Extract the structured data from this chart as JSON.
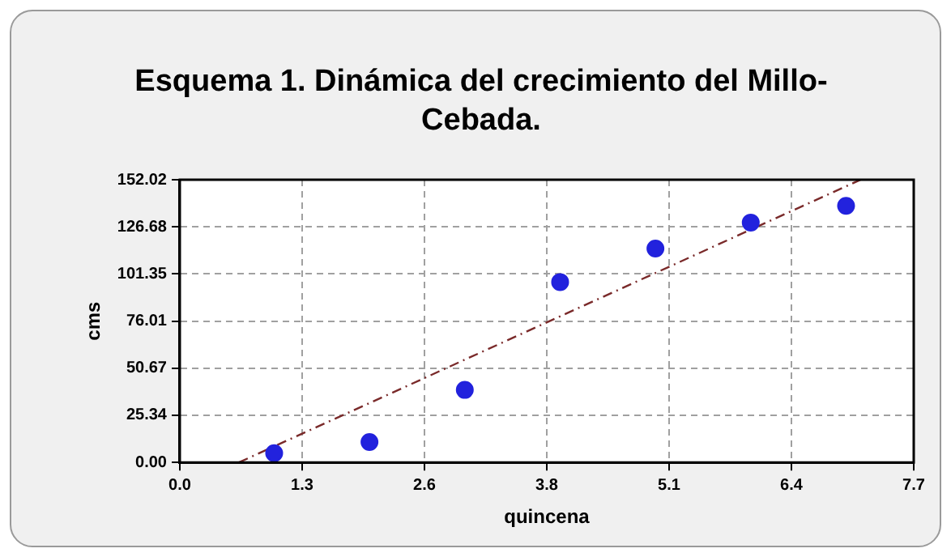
{
  "chart_data": {
    "type": "scatter",
    "title": "Esquema 1. Dinámica del crecimiento del Millo-Cebada.",
    "xlabel": "quincena",
    "ylabel": "cms",
    "series": [
      {
        "type": "scatter",
        "color": "#2222dd",
        "x": [
          0.99,
          1.99,
          2.99,
          3.99,
          4.99,
          5.99,
          6.99
        ],
        "values": [
          5,
          11,
          39,
          97,
          115,
          129,
          138
        ],
        "marker": "circle"
      },
      {
        "type": "line",
        "color": "#7a2a2a",
        "x": [
          0.62,
          7.14
        ],
        "values": [
          0,
          152
        ],
        "marker": "none",
        "line_style": "dashed"
      }
    ],
    "xlim": [
      0,
      7.7
    ],
    "xticks": [
      {
        "value": 0,
        "label": "0.0"
      },
      {
        "value": 1.2833,
        "label": "1.3"
      },
      {
        "value": 2.5667,
        "label": "2.6"
      },
      {
        "value": 3.85,
        "label": "3.8"
      },
      {
        "value": 5.1333,
        "label": "5.1"
      },
      {
        "value": 6.4167,
        "label": "6.4"
      },
      {
        "value": 7.7,
        "label": "7.7"
      }
    ],
    "ylim": [
      0,
      152.02
    ],
    "yticks": [
      {
        "value": 0,
        "label": "0.00"
      },
      25.34,
      50.67,
      76.01,
      101.35,
      126.68,
      152.02
    ],
    "grid": true,
    "legend": false
  }
}
